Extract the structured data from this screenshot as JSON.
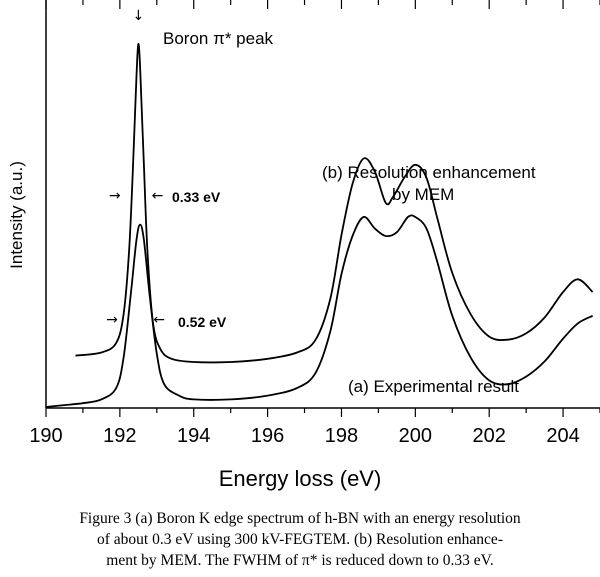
{
  "chart_data": {
    "type": "line",
    "xlabel": "Energy loss (eV)",
    "ylabel": "Intensity (a.u.)",
    "xlim": [
      190,
      205
    ],
    "x_ticks": [
      190,
      192,
      194,
      196,
      198,
      200,
      202,
      204
    ],
    "y_ticks_shown": false,
    "series": [
      {
        "name": "(b) Resolution enhancement by MEM",
        "x": [
          190.8,
          191.5,
          191.9,
          192.1,
          192.25,
          192.35,
          192.45,
          192.5,
          192.55,
          192.65,
          192.75,
          192.9,
          193.1,
          193.4,
          194.0,
          195.0,
          196.0,
          196.8,
          197.3,
          197.7,
          198.0,
          198.3,
          198.6,
          198.9,
          199.2,
          199.4,
          199.7,
          200.0,
          200.3,
          200.6,
          201.0,
          201.5,
          202.0,
          202.5,
          203.0,
          203.5,
          204.0,
          204.4,
          204.8
        ],
        "y": [
          0.02,
          0.03,
          0.06,
          0.15,
          0.35,
          0.6,
          0.9,
          1.0,
          0.92,
          0.62,
          0.34,
          0.12,
          0.04,
          0.01,
          0.0,
          0.0,
          0.01,
          0.03,
          0.07,
          0.2,
          0.4,
          0.56,
          0.64,
          0.6,
          0.5,
          0.52,
          0.58,
          0.62,
          0.58,
          0.45,
          0.28,
          0.15,
          0.08,
          0.07,
          0.09,
          0.14,
          0.22,
          0.26,
          0.22
        ]
      },
      {
        "name": "(a) Experimental result",
        "x": [
          190.0,
          190.5,
          191.0,
          191.5,
          191.9,
          192.1,
          192.3,
          192.45,
          192.55,
          192.65,
          192.8,
          193.0,
          193.2,
          193.6,
          194.0,
          195.0,
          196.0,
          196.8,
          197.3,
          197.7,
          198.0,
          198.3,
          198.6,
          198.9,
          199.2,
          199.5,
          199.8,
          200.0,
          200.3,
          200.6,
          201.0,
          201.5,
          202.0,
          202.5,
          203.0,
          203.5,
          204.0,
          204.4,
          204.8
        ],
        "y": [
          0.0,
          0.005,
          0.01,
          0.02,
          0.05,
          0.13,
          0.3,
          0.44,
          0.48,
          0.44,
          0.3,
          0.14,
          0.06,
          0.03,
          0.02,
          0.02,
          0.03,
          0.05,
          0.09,
          0.2,
          0.35,
          0.45,
          0.5,
          0.47,
          0.45,
          0.46,
          0.5,
          0.5,
          0.47,
          0.38,
          0.24,
          0.13,
          0.07,
          0.06,
          0.08,
          0.12,
          0.18,
          0.22,
          0.24
        ]
      }
    ],
    "annotations": {
      "peak_label": "Boron π* peak",
      "fwhm_b": "0.33 eV",
      "fwhm_a": "0.52 eV",
      "label_b_line1": "(b) Resolution enhancement",
      "label_b_line2": "by MEM",
      "label_a": "(a) Experimental result"
    },
    "grid": false,
    "legend": "none"
  },
  "caption": {
    "line1": "Figure 3   (a) Boron K edge spectrum of h-BN with an energy resolution",
    "line2": "of about 0.3 eV using 300 kV-FEGTEM.  (b) Resolution enhance-",
    "line3": "ment by MEM.  The FWHM of π* is reduced down to 0.33 eV."
  }
}
